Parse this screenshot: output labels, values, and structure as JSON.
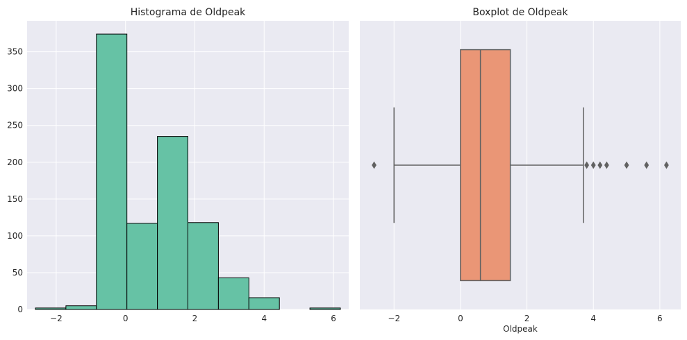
{
  "colors": {
    "background": "#eaeaf2",
    "grid": "#ffffff",
    "text": "#262626",
    "hist_fill": "#66c2a5",
    "box_fill": "#ea9676",
    "box_line": "#616161",
    "hist_edge": "#000000"
  },
  "chart_data": [
    {
      "type": "bar",
      "title": "Histograma de Oldpeak",
      "xlabel": "",
      "ylabel": "",
      "xlim": [
        -2.84,
        6.44
      ],
      "ylim": [
        0,
        392
      ],
      "grid": true,
      "x_ticks": [
        -2,
        0,
        2,
        4,
        6
      ],
      "x_tick_labels": [
        "−2",
        "0",
        "2",
        "4",
        "6"
      ],
      "y_ticks": [
        0,
        50,
        100,
        150,
        200,
        250,
        300,
        350
      ],
      "y_tick_labels": [
        "0",
        "50",
        "100",
        "150",
        "200",
        "250",
        "300",
        "350"
      ],
      "bin_edges": [
        -2.6,
        -1.72,
        -0.84,
        0.04,
        0.92,
        1.8,
        2.68,
        3.56,
        4.44,
        5.32,
        6.2
      ],
      "values": [
        2,
        5,
        374,
        117,
        235,
        118,
        43,
        16,
        0,
        2
      ]
    },
    {
      "type": "box",
      "title": "Boxplot de Oldpeak",
      "xlabel": "Oldpeak",
      "ylabel": "",
      "xlim": [
        -3.03,
        6.63
      ],
      "grid": true,
      "x_ticks": [
        -2,
        0,
        2,
        4,
        6
      ],
      "x_tick_labels": [
        "−2",
        "0",
        "2",
        "4",
        "6"
      ],
      "whisker_low": -2.0,
      "q1": 0.0,
      "median": 0.6,
      "q3": 1.5,
      "whisker_high": 3.7,
      "outliers": [
        -2.6,
        3.8,
        4.0,
        4.2,
        4.4,
        5.0,
        5.6,
        6.2
      ]
    }
  ]
}
